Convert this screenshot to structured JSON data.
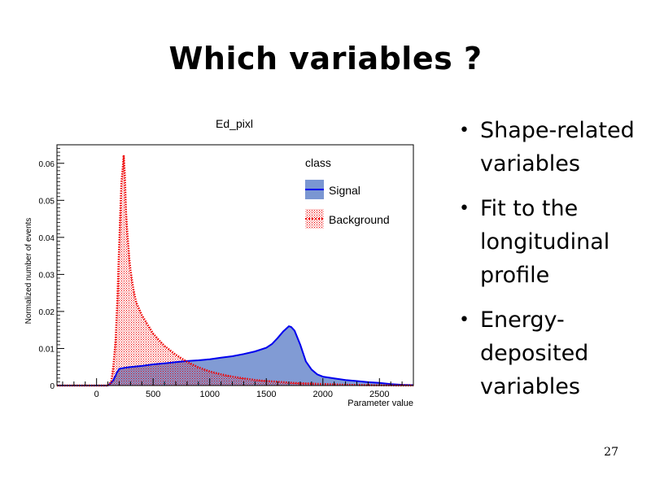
{
  "slide": {
    "title": "Which variables ?",
    "bullets": [
      "Shape-related variables",
      "Fit to the longitudinal profile",
      "Energy-deposited variables"
    ],
    "page_number": "27"
  },
  "colors": {
    "signal_fill": "#7a96d2",
    "signal_line": "#0000ee",
    "background_line": "#ee0000",
    "background_hatch": "#ee0000"
  },
  "chart_data": {
    "type": "line",
    "title": "Ed_pixl",
    "xlabel": "Parameter value",
    "ylabel": "Normalized number of events",
    "xlim": [
      -350,
      2800
    ],
    "ylim": [
      0,
      0.065
    ],
    "xticks": [
      0,
      500,
      1000,
      1500,
      2000,
      2500
    ],
    "xtick_labels": [
      "0",
      "500",
      "1000",
      "1500",
      "2000",
      "2500"
    ],
    "yticks": [
      0,
      0.01,
      0.02,
      0.03,
      0.04,
      0.05,
      0.06
    ],
    "ytick_labels": [
      "0",
      "0.01",
      "0.02",
      "0.03",
      "0.04",
      "0.05",
      "0.06"
    ],
    "grid": false,
    "legend": {
      "title": "class",
      "position": "top-right"
    },
    "series": [
      {
        "name": "Signal",
        "style": "filled",
        "x": [
          -350,
          100,
          120,
          150,
          180,
          200,
          250,
          300,
          400,
          500,
          600,
          700,
          800,
          900,
          1000,
          1100,
          1200,
          1300,
          1400,
          1500,
          1550,
          1600,
          1650,
          1700,
          1720,
          1750,
          1800,
          1850,
          1900,
          1950,
          2000,
          2100,
          2200,
          2300,
          2400,
          2500,
          2600,
          2700,
          2800
        ],
        "y": [
          0,
          0,
          0.0005,
          0.0015,
          0.0035,
          0.0045,
          0.0048,
          0.005,
          0.0053,
          0.0057,
          0.006,
          0.0063,
          0.0066,
          0.0068,
          0.0071,
          0.0075,
          0.0079,
          0.0085,
          0.0092,
          0.0102,
          0.0112,
          0.0128,
          0.0146,
          0.016,
          0.0158,
          0.0148,
          0.011,
          0.0065,
          0.0043,
          0.003,
          0.0024,
          0.0019,
          0.0015,
          0.0012,
          0.0009,
          0.0007,
          0.0004,
          0.0002,
          0.0001
        ]
      },
      {
        "name": "Background",
        "style": "hatched",
        "x": [
          -350,
          100,
          130,
          150,
          170,
          185,
          200,
          210,
          220,
          230,
          240,
          250,
          260,
          270,
          280,
          290,
          300,
          325,
          350,
          400,
          450,
          500,
          550,
          600,
          700,
          800,
          900,
          1000,
          1100,
          1200,
          1300,
          1400,
          1500,
          1600,
          1700,
          1800,
          1900,
          2000,
          2100,
          2200,
          2400,
          2600,
          2800
        ],
        "y": [
          0,
          0,
          0.001,
          0.0055,
          0.013,
          0.024,
          0.038,
          0.047,
          0.055,
          0.058,
          0.0622,
          0.057,
          0.047,
          0.042,
          0.038,
          0.034,
          0.031,
          0.026,
          0.0225,
          0.019,
          0.0165,
          0.014,
          0.0123,
          0.0107,
          0.0083,
          0.0064,
          0.0049,
          0.0038,
          0.003,
          0.0024,
          0.0019,
          0.0015,
          0.0012,
          0.001,
          0.0008,
          0.0006,
          0.0005,
          0.0004,
          0.0003,
          0.0002,
          0.0001,
          5e-05,
          2e-05
        ]
      }
    ]
  }
}
